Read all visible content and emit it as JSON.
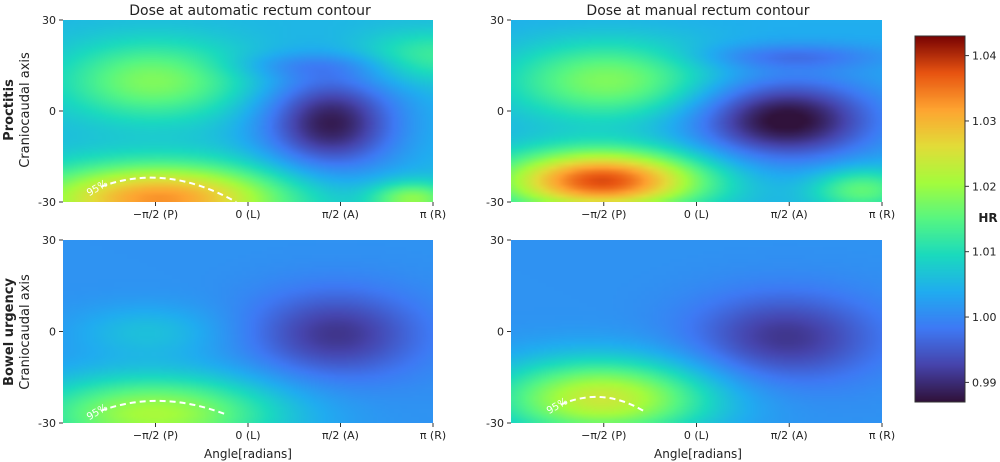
{
  "chart_data": {
    "type": "heatmap",
    "panel_titles": [
      "Dose at automatic rectum contour",
      "Dose at manual rectum contour"
    ],
    "row_labels": [
      "Proctitis",
      "Bowel urgency"
    ],
    "ylabel": "Craniocaudal axis",
    "xlabel": "Angle[radians]",
    "x_ticks": [
      "−π/2 (P)",
      "0 (L)",
      "π/2 (A)",
      "π (R)"
    ],
    "x_tick_values": [
      -1.5708,
      0,
      1.5708,
      3.1416
    ],
    "xlim": [
      -3.1416,
      3.1416
    ],
    "y_ticks": [
      "30",
      "0",
      "-30"
    ],
    "y_tick_values": [
      30,
      0,
      -30
    ],
    "ylim": [
      -30,
      30
    ],
    "colorbar": {
      "label": "HR",
      "ticks": [
        "1.04",
        "1.03",
        "1.02",
        "1.01",
        "1.00",
        "0.99"
      ],
      "tick_values": [
        1.04,
        1.03,
        1.02,
        1.01,
        1.0,
        0.99
      ],
      "range": [
        0.987,
        1.043
      ]
    },
    "contour_label": "95%",
    "panels": [
      {
        "row": 0,
        "col": 0,
        "background": 1.005,
        "features": [
          {
            "x": 3.14,
            "y": 18,
            "sx": 0.9,
            "sy": 6,
            "amp": 0.008
          },
          {
            "x": -1.6,
            "y": 10,
            "sx": 1.1,
            "sy": 9,
            "amp": 0.013
          },
          {
            "x": 1.05,
            "y": 15,
            "sx": 1.0,
            "sy": 3,
            "amp": -0.004
          },
          {
            "x": 1.4,
            "y": -4,
            "sx": 0.8,
            "sy": 11,
            "amp": -0.017
          },
          {
            "x": -1.5,
            "y": -29,
            "sx": 1.5,
            "sy": 8,
            "amp": 0.028
          },
          {
            "x": 2.8,
            "y": -29,
            "sx": 0.5,
            "sy": 4,
            "amp": 0.014
          }
        ],
        "contour": {
          "x": [
            -2.5,
            -1.4,
            -0.2
          ],
          "y": [
            -25,
            -19,
            -30
          ]
        }
      },
      {
        "row": 0,
        "col": 1,
        "background": 1.004,
        "features": [
          {
            "x": -1.5,
            "y": 10,
            "sx": 1.2,
            "sy": 9,
            "amp": 0.014
          },
          {
            "x": 1.5,
            "y": -3,
            "sx": 1.05,
            "sy": 9,
            "amp": -0.018
          },
          {
            "x": 1.6,
            "y": 18,
            "sx": 1.1,
            "sy": 3,
            "amp": -0.006
          },
          {
            "x": -1.6,
            "y": -23,
            "sx": 1.2,
            "sy": 7,
            "amp": 0.034
          },
          {
            "x": 2.8,
            "y": -26,
            "sx": 0.6,
            "sy": 5,
            "amp": 0.012
          }
        ]
      },
      {
        "row": 1,
        "col": 0,
        "background": 1.001,
        "features": [
          {
            "x": -1.7,
            "y": 0,
            "sx": 0.9,
            "sy": 6,
            "amp": 0.005
          },
          {
            "x": 1.5,
            "y": -1,
            "sx": 1.0,
            "sy": 10,
            "amp": -0.01
          },
          {
            "x": -1.6,
            "y": -27,
            "sx": 1.5,
            "sy": 9,
            "amp": 0.02
          }
        ],
        "contour": {
          "x": [
            -2.5,
            -1.5,
            -0.4
          ],
          "y": [
            -26,
            -21,
            -27
          ]
        }
      },
      {
        "row": 1,
        "col": 1,
        "background": 1.001,
        "features": [
          {
            "x": 1.5,
            "y": -2,
            "sx": 1.1,
            "sy": 10,
            "amp": -0.01
          },
          {
            "x": -1.6,
            "y": -22,
            "sx": 1.3,
            "sy": 9,
            "amp": 0.023
          }
        ],
        "contour": {
          "x": [
            -2.3,
            -1.6,
            -0.9
          ],
          "y": [
            -24,
            -20,
            -26
          ]
        }
      }
    ]
  }
}
